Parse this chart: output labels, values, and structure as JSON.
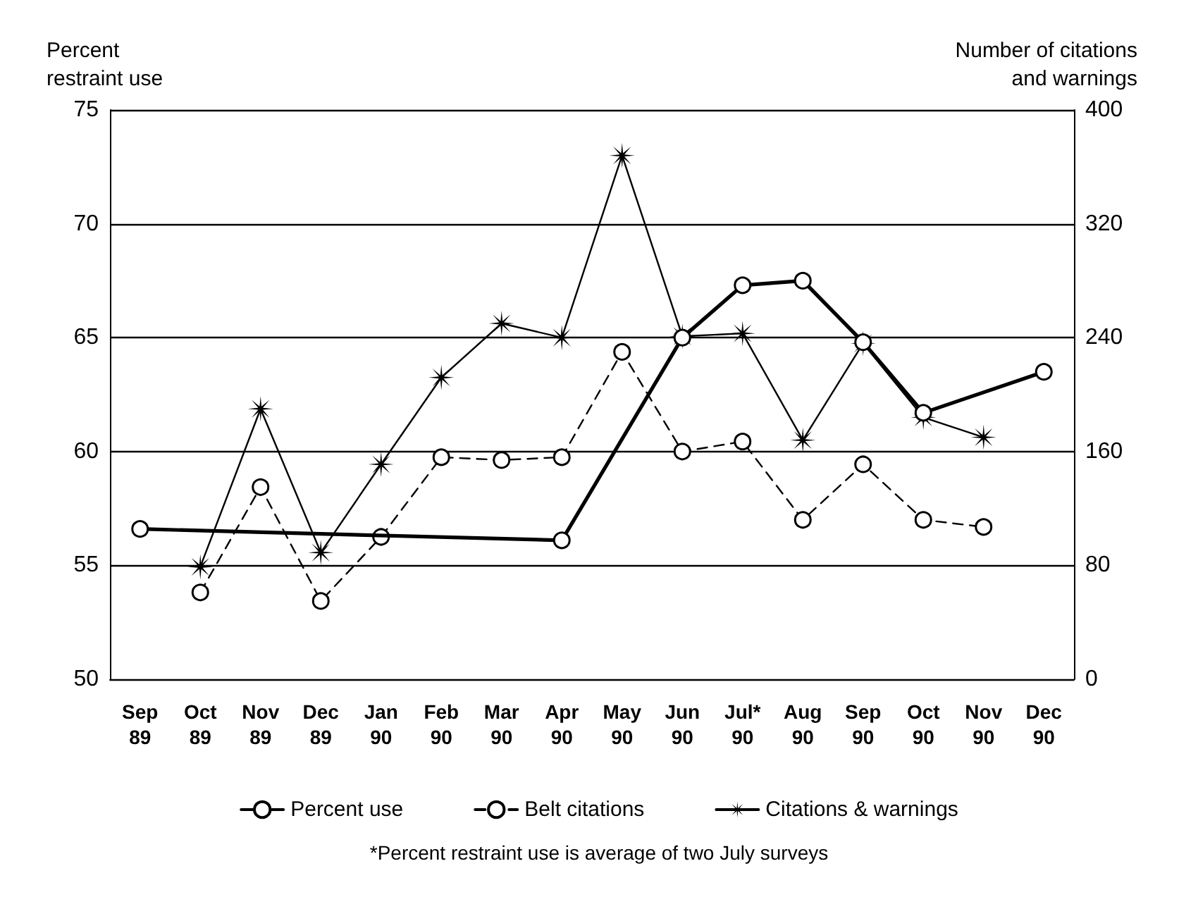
{
  "chart_data": {
    "type": "line",
    "ylabel": "Percent\nrestraint use",
    "y2label": "Number of citations\nand warnings",
    "categories": [
      "Sep\n89",
      "Oct\n89",
      "Nov\n89",
      "Dec\n89",
      "Jan\n90",
      "Feb\n90",
      "Mar\n90",
      "Apr\n90",
      "May\n90",
      "Jun\n90",
      "Jul*\n90",
      "Aug\n90",
      "Sep\n90",
      "Oct\n90",
      "Nov\n90",
      "Dec\n90"
    ],
    "series": [
      {
        "name": "Percent use",
        "color": "#000000",
        "marker": "circle",
        "line_style": "solid",
        "values": [
          56.6,
          null,
          null,
          null,
          null,
          null,
          null,
          56.1,
          null,
          65.0,
          67.3,
          67.5,
          64.8,
          61.7,
          null,
          63.5
        ]
      },
      {
        "name": "Belt citations",
        "color": "#000000",
        "marker": "circle",
        "line_style": "dashed",
        "axis": "y2",
        "values": [
          null,
          61,
          135,
          55,
          100,
          156,
          154,
          156,
          230,
          160,
          167,
          112,
          151,
          112,
          107,
          null
        ]
      },
      {
        "name": "Citations & warnings",
        "color": "#000000",
        "marker": "star",
        "line_style": "solid",
        "axis": "y2",
        "values": [
          null,
          79,
          190,
          89,
          151,
          212,
          250,
          240,
          368,
          241,
          243,
          168,
          236,
          184,
          170,
          null
        ]
      }
    ],
    "ylim": [
      50,
      75
    ],
    "yticks": [
      50,
      55,
      60,
      65,
      70,
      75
    ],
    "y2lim": [
      0,
      400
    ],
    "y2ticks": [
      0,
      80,
      160,
      240,
      320,
      400
    ],
    "grid": "y",
    "legend": "bottom",
    "annotations": [
      "*Percent restraint use is average of two July surveys"
    ]
  }
}
